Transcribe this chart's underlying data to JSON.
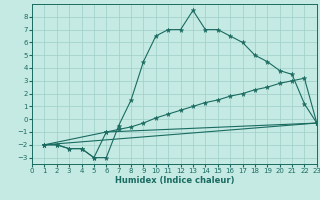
{
  "xlabel": "Humidex (Indice chaleur)",
  "bg_color": "#c5eae4",
  "grid_color": "#9dcfc8",
  "line_color": "#1a6b60",
  "xlim": [
    0,
    23
  ],
  "ylim": [
    -3.5,
    9.0
  ],
  "x_ticks": [
    0,
    1,
    2,
    3,
    4,
    5,
    6,
    7,
    8,
    9,
    10,
    11,
    12,
    13,
    14,
    15,
    16,
    17,
    18,
    19,
    20,
    21,
    22,
    23
  ],
  "y_ticks": [
    -3,
    -2,
    -1,
    0,
    1,
    2,
    3,
    4,
    5,
    6,
    7,
    8
  ],
  "series1_x": [
    1,
    2,
    3,
    4,
    5,
    6,
    7,
    8,
    9,
    10,
    11,
    12,
    13,
    14,
    15,
    16,
    17,
    18,
    19,
    20,
    21,
    22,
    23
  ],
  "series1_y": [
    -2,
    -2,
    -2.3,
    -2.3,
    -3,
    -3,
    -0.5,
    1.5,
    4.5,
    6.5,
    7.0,
    7.0,
    8.5,
    7.0,
    7.0,
    6.5,
    6.0,
    5.0,
    4.5,
    3.8,
    3.5,
    1.2,
    -0.3
  ],
  "series2_x": [
    1,
    6,
    7,
    8,
    9,
    10,
    11,
    12,
    13,
    14,
    15,
    16,
    17,
    18,
    19,
    20,
    21,
    22,
    23
  ],
  "series2_y": [
    -2,
    -1.0,
    -0.8,
    -0.6,
    -0.3,
    0.1,
    0.4,
    0.7,
    1.0,
    1.3,
    1.5,
    1.8,
    2.0,
    2.3,
    2.5,
    2.8,
    3.0,
    3.2,
    -0.3
  ],
  "series3_x": [
    1,
    2,
    3,
    4,
    5,
    6,
    23
  ],
  "series3_y": [
    -2,
    -2,
    -2.3,
    -2.3,
    -3,
    -1.0,
    -0.3
  ],
  "series4_x": [
    1,
    23
  ],
  "series4_y": [
    -2,
    -0.3
  ]
}
